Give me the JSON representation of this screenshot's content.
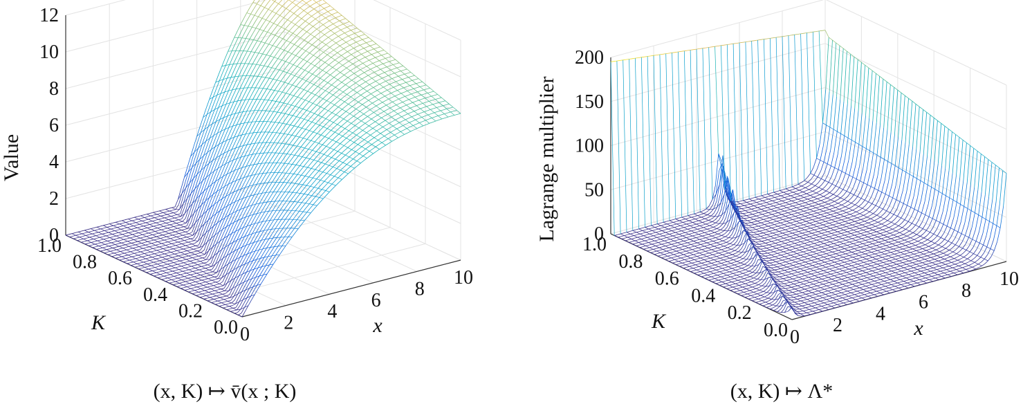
{
  "chart_data": [
    {
      "type": "surface",
      "mesh": "wireframe",
      "colormap": "parula",
      "xlabel": "x",
      "ylabel": "K",
      "zlabel": "Value",
      "xlim": [
        0,
        10
      ],
      "ylim": [
        0.0,
        1.0
      ],
      "zlim": [
        0,
        12
      ],
      "x_ticks": [
        "0",
        "2",
        "4",
        "6",
        "8",
        "10"
      ],
      "y_ticks": [
        "0.0",
        "0.2",
        "0.4",
        "0.6",
        "0.8",
        "1.0"
      ],
      "z_ticks": [
        "0",
        "2",
        "4",
        "6",
        "8",
        "10",
        "12"
      ],
      "grid": true,
      "caption": "(x, K) ↦ v̄(x ; K)",
      "surface_description": "value 0 for x below about 5K, rising concavely in x; at K = 0 value rises from 0 at x = 0 to about 8 at x = 10, at K = 1 value reaches about 11.5 at x = 10",
      "sample_values": [
        {
          "K": 0.0,
          "x": [
            0,
            2,
            4,
            6,
            8,
            10
          ],
          "value": [
            0,
            3.5,
            5.6,
            6.9,
            7.6,
            8.0
          ]
        },
        {
          "K": 0.5,
          "x": [
            0,
            2,
            4,
            6,
            8,
            10
          ],
          "value": [
            0,
            0,
            1.6,
            5.4,
            8.2,
            9.8
          ]
        },
        {
          "K": 1.0,
          "x": [
            0,
            2,
            4,
            6,
            8,
            10
          ],
          "value": [
            0,
            0,
            0,
            1.7,
            7.0,
            11.5
          ]
        }
      ]
    },
    {
      "type": "surface",
      "mesh": "wireframe",
      "colormap": "parula",
      "xlabel": "x",
      "ylabel": "K",
      "zlabel": "Lagrange multiplier",
      "xlim": [
        0,
        10
      ],
      "ylim": [
        0.0,
        1.0
      ],
      "zlim": [
        0,
        200
      ],
      "x_ticks": [
        "0",
        "2",
        "4",
        "6",
        "8",
        "10"
      ],
      "y_ticks": [
        "0.0",
        "0.2",
        "0.4",
        "0.6",
        "0.8",
        "1.0"
      ],
      "z_ticks": [
        "0",
        "50",
        "100",
        "150",
        "200"
      ],
      "grid": true,
      "caption": "(x, K) ↦ Λ*",
      "surface_description": "near 0 over most of the domain with spikes at x = 5K; for K near 1 the multiplier is large (about 195 at x = 0 decreasing to about 170), and near x = 10 values are about 100 at K = 0 rising toward 160 for K near 1",
      "sample_values": [
        {
          "K": 1.0,
          "x": [
            0,
            2,
            4,
            6,
            8,
            10
          ],
          "lambda": [
            195,
            185,
            178,
            172,
            168,
            165
          ]
        },
        {
          "K": 0.0,
          "x": [
            0,
            2,
            4,
            6,
            8,
            10
          ],
          "lambda": [
            0,
            0,
            0,
            2,
            20,
            100
          ]
        }
      ]
    }
  ]
}
